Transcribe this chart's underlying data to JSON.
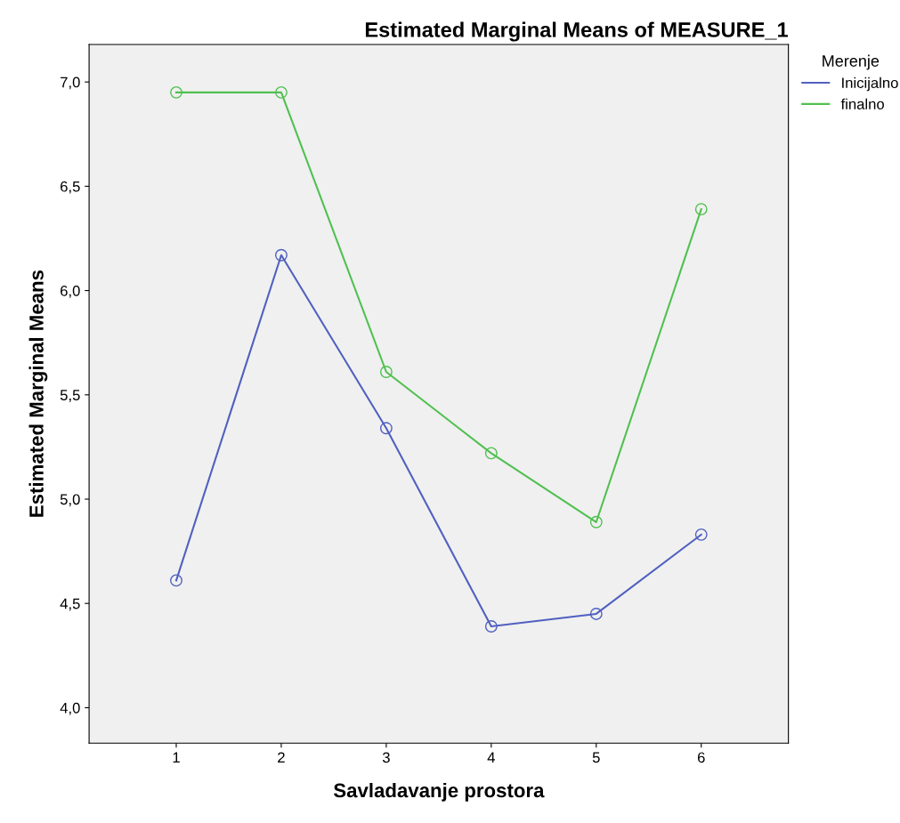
{
  "chart_data": {
    "type": "line",
    "title": "Estimated Marginal Means of MEASURE_1",
    "xlabel": "Savladavanje prostora",
    "ylabel": "Estimated Marginal Means",
    "legend_title": "Merenje",
    "x": [
      1,
      2,
      3,
      4,
      5,
      6
    ],
    "series": [
      {
        "name": "Inicijalno",
        "color": "#5060c0",
        "values": [
          4.61,
          6.17,
          5.34,
          4.39,
          4.45,
          4.83
        ]
      },
      {
        "name": "finalno",
        "color": "#50c050",
        "values": [
          6.95,
          6.95,
          5.61,
          5.22,
          4.89,
          6.39
        ]
      }
    ],
    "xlim": [
      0.17,
      6.83
    ],
    "xticks": [
      1,
      2,
      3,
      4,
      5,
      6
    ],
    "ylim": [
      3.83,
      7.18
    ],
    "yticks": [
      {
        "value": 4.0,
        "label": "4,0"
      },
      {
        "value": 4.5,
        "label": "4,5"
      },
      {
        "value": 5.0,
        "label": "5,0"
      },
      {
        "value": 5.5,
        "label": "5,5"
      },
      {
        "value": 6.0,
        "label": "6,0"
      },
      {
        "value": 6.5,
        "label": "6,5"
      },
      {
        "value": 7.0,
        "label": "7,0"
      }
    ],
    "grid": false,
    "legend": "right",
    "marker": "circle",
    "line_style": "solid"
  }
}
